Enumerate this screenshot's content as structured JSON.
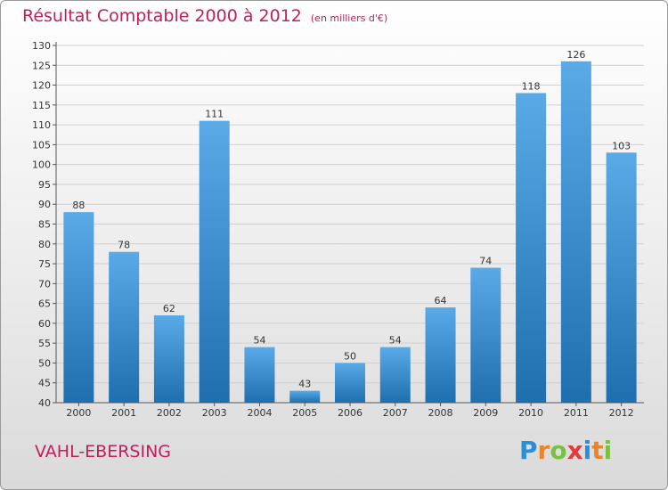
{
  "title": "Résultat Comptable 2000 à 2012",
  "subtitle": "(en milliers d'€)",
  "commune": "VAHL-EBERSING",
  "logo": {
    "letters": [
      {
        "ch": "P",
        "color": "#2a8fd6"
      },
      {
        "ch": "r",
        "color": "#e8862c"
      },
      {
        "ch": "o",
        "color": "#7ac143"
      },
      {
        "ch": "x",
        "color": "#e23b3b"
      },
      {
        "ch": "i",
        "color": "#2a8fd6"
      },
      {
        "ch": "t",
        "color": "#e8862c"
      },
      {
        "ch": "i",
        "color": "#7ac143"
      }
    ]
  },
  "colors": {
    "bar_top": "#5aaae8",
    "bar_bottom": "#1f6fae",
    "title": "#c21e5c",
    "grid": "#d0d0d0"
  },
  "chart_data": {
    "type": "bar",
    "categories": [
      "2000",
      "2001",
      "2002",
      "2003",
      "2004",
      "2005",
      "2006",
      "2007",
      "2008",
      "2009",
      "2010",
      "2011",
      "2012"
    ],
    "values": [
      88,
      78,
      62,
      111,
      54,
      43,
      50,
      54,
      64,
      74,
      118,
      126,
      103
    ],
    "ylim": [
      40,
      130
    ],
    "ytick_step": 5,
    "grid": true,
    "legend": "none"
  }
}
